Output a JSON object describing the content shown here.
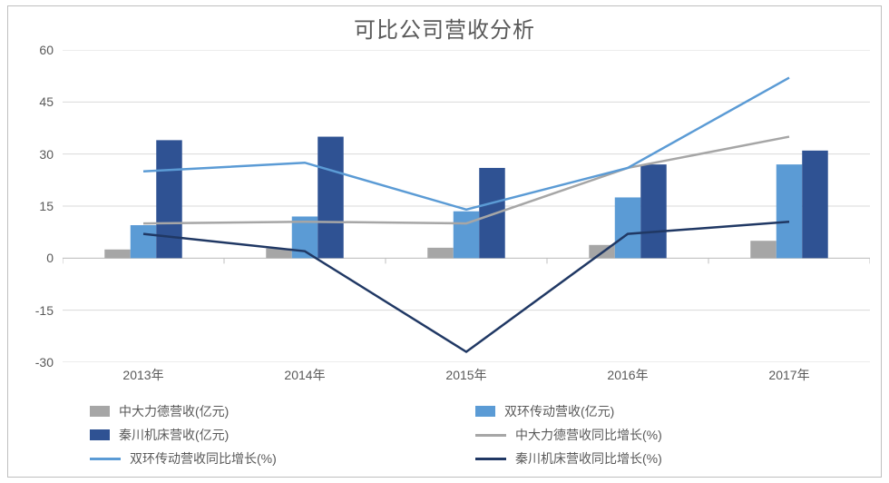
{
  "title": "可比公司营收分析",
  "chart": {
    "type": "bar+line",
    "background_color": "#ffffff",
    "grid_color": "#d9d9d9",
    "axis_line_color": "#bfbfbf",
    "label_color": "#595959",
    "title_fontsize": 24,
    "tick_fontsize": 14,
    "legend_fontsize": 14,
    "ylim": [
      -30,
      60
    ],
    "ytick_step": 15,
    "yticks": [
      -30,
      -15,
      0,
      15,
      30,
      45,
      60
    ],
    "categories": [
      "2013年",
      "2014年",
      "2015年",
      "2016年",
      "2017年"
    ],
    "bar_width": 0.16,
    "bar_series": [
      {
        "key": "zdld",
        "name": "中大力德营收(亿元)",
        "color": "#a6a6a6",
        "values": [
          2.5,
          2.8,
          3.0,
          3.8,
          5.0
        ]
      },
      {
        "key": "shcd",
        "name": "双环传动营收(亿元)",
        "color": "#5b9bd5",
        "values": [
          9.5,
          12.0,
          13.5,
          17.5,
          27.0
        ]
      },
      {
        "key": "qcjc",
        "name": "秦川机床营收(亿元)",
        "color": "#2f5293",
        "values": [
          34.0,
          35.0,
          26.0,
          27.0,
          31.0
        ]
      }
    ],
    "line_series": [
      {
        "key": "zdld_g",
        "name": "中大力德营收同比增长(%)",
        "color": "#a6a6a6",
        "values": [
          10.0,
          10.5,
          10.0,
          26.0,
          35.0
        ],
        "width": 2.5
      },
      {
        "key": "shcd_g",
        "name": "双环传动营收同比增长(%)",
        "color": "#5b9bd5",
        "values": [
          25.0,
          27.5,
          14.0,
          26.0,
          52.0
        ],
        "width": 2.5
      },
      {
        "key": "qcjc_g",
        "name": "秦川机床营收同比增长(%)",
        "color": "#203864",
        "values": [
          7.0,
          2.0,
          -27.0,
          7.0,
          10.5
        ],
        "width": 2.5
      }
    ],
    "legend_order": [
      {
        "type": "bar",
        "idx": 0
      },
      {
        "type": "bar",
        "idx": 1
      },
      {
        "type": "bar",
        "idx": 2
      },
      {
        "type": "line",
        "idx": 0
      },
      {
        "type": "line",
        "idx": 1
      },
      {
        "type": "line",
        "idx": 2
      }
    ]
  }
}
